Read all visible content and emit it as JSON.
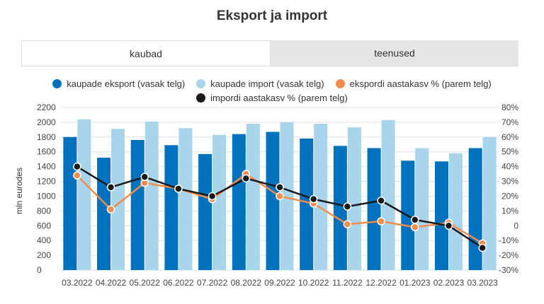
{
  "title": "Eksport ja import",
  "tabs": [
    {
      "label": "kaubad",
      "active": true
    },
    {
      "label": "teenused",
      "active": false
    }
  ],
  "colors": {
    "export": "#0071bc",
    "import": "#a8d5ec",
    "export_pct": "#f28c4b",
    "import_pct": "#1a1a1a",
    "grid": "#e0e0e0"
  },
  "chart_data": {
    "type": "bar",
    "title": "Eksport ja import",
    "ylabel": "mln eurodes",
    "ylim": [
      0,
      2200
    ],
    "yticks": [
      0,
      200,
      400,
      600,
      800,
      1000,
      1200,
      1400,
      1600,
      1800,
      2000,
      2200
    ],
    "y2lim": [
      -30,
      80
    ],
    "y2ticks": [
      "-30%",
      "-20%",
      "-10%",
      "0",
      "10%",
      "20%",
      "30%",
      "40%",
      "50%",
      "60%",
      "70%",
      "80%"
    ],
    "legend_position": "top",
    "grid": true,
    "categories": [
      "03.2022",
      "04.2022",
      "05.2022",
      "06.2022",
      "07.2022",
      "08.2022",
      "09.2022",
      "10.2022",
      "11.2022",
      "12.2022",
      "01.2023",
      "02.2023",
      "03.2023"
    ],
    "series": [
      {
        "name": "kaupade eksport (vasak telg)",
        "type": "bar",
        "axis": "left",
        "values": [
          1800,
          1520,
          1760,
          1690,
          1570,
          1840,
          1870,
          1780,
          1680,
          1650,
          1480,
          1470,
          1650
        ]
      },
      {
        "name": "kaupade import (vasak telg)",
        "type": "bar",
        "axis": "left",
        "values": [
          2040,
          1910,
          2010,
          1920,
          1830,
          1980,
          2000,
          1980,
          1930,
          2030,
          1650,
          1580,
          1800
        ]
      },
      {
        "name": "ekspordi aastakasv % (parem telg)",
        "type": "line",
        "axis": "right",
        "values": [
          34,
          11,
          29,
          25,
          18,
          35,
          20,
          15,
          1,
          3,
          -1,
          2,
          -12
        ]
      },
      {
        "name": "impordi aastakasv % (parem telg)",
        "type": "line",
        "axis": "right",
        "values": [
          40,
          26,
          33,
          25,
          20,
          32,
          26,
          18,
          13,
          17,
          4,
          0,
          -15
        ]
      }
    ]
  }
}
